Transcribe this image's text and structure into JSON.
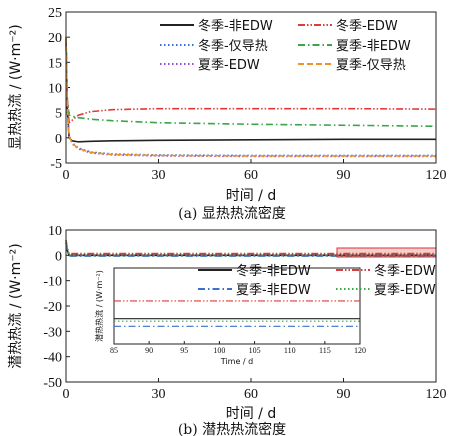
{
  "chart_data": [
    {
      "type": "line",
      "caption": "(a) 显热热流密度",
      "xlabel": "时间 / d",
      "ylabel": "显热热流 / (W·m⁻²)",
      "xlim": [
        0,
        120
      ],
      "ylim": [
        -5,
        25
      ],
      "xticks": [
        0,
        30,
        60,
        90,
        120
      ],
      "yticks": [
        -5,
        0,
        5,
        10,
        15,
        20,
        25
      ],
      "legend_position": "top",
      "series": [
        {
          "name": "冬季-非EDW",
          "color": "#222222",
          "dash": "solid",
          "x": [
            0,
            0.4,
            1,
            2,
            4,
            8,
            15,
            30,
            60,
            90,
            120
          ],
          "y": [
            20,
            6,
            0,
            -0.6,
            -0.8,
            -0.7,
            -0.6,
            -0.5,
            -0.4,
            -0.3,
            -0.3
          ]
        },
        {
          "name": "冬季-EDW",
          "color": "#e03a3a",
          "dash": "dashdotdot",
          "x": [
            0,
            0.4,
            1,
            2,
            4,
            8,
            15,
            30,
            60,
            90,
            120
          ],
          "y": [
            20,
            8,
            3,
            3.5,
            4.5,
            5.2,
            5.6,
            5.8,
            5.8,
            5.8,
            5.7
          ]
        },
        {
          "name": "冬季-仅导热",
          "color": "#3d6fd1",
          "dash": "dotted",
          "x": [
            0,
            0.4,
            1,
            2,
            4,
            8,
            15,
            30,
            60,
            90,
            120
          ],
          "y": [
            20,
            6,
            0.5,
            -1,
            -2,
            -2.8,
            -3.2,
            -3.4,
            -3.5,
            -3.5,
            -3.5
          ]
        },
        {
          "name": "夏季-非EDW",
          "color": "#3aa648",
          "dash": "dashdot",
          "x": [
            0,
            0.4,
            1,
            2,
            4,
            8,
            15,
            30,
            60,
            90,
            120
          ],
          "y": [
            20,
            8,
            4.5,
            4.3,
            4,
            3.7,
            3.4,
            3,
            2.7,
            2.5,
            2.3
          ]
        },
        {
          "name": "夏季-EDW",
          "color": "#8e4fc9",
          "dash": "dotted",
          "x": [
            0,
            0.4,
            1,
            2,
            4,
            8,
            15,
            30,
            60,
            90,
            120
          ],
          "y": [
            20,
            6,
            0.5,
            -1.2,
            -2.2,
            -3,
            -3.4,
            -3.6,
            -3.7,
            -3.7,
            -3.7
          ]
        },
        {
          "name": "夏季-仅导热",
          "color": "#f0922b",
          "dash": "dashed",
          "x": [
            0,
            0.4,
            1,
            2,
            4,
            8,
            15,
            30,
            60,
            90,
            120
          ],
          "y": [
            20,
            6,
            0.4,
            -1.1,
            -2.1,
            -2.9,
            -3.3,
            -3.5,
            -3.6,
            -3.6,
            -3.6
          ]
        }
      ]
    },
    {
      "type": "line",
      "caption": "(b) 潜热热流密度",
      "xlabel": "时间 / d",
      "ylabel": "潜热热流 / (W·m⁻²)",
      "xlim": [
        0,
        120
      ],
      "ylim": [
        -50,
        10
      ],
      "xticks": [
        0,
        30,
        60,
        90,
        120
      ],
      "yticks": [
        -50,
        -40,
        -30,
        -20,
        -10,
        0,
        10
      ],
      "legend_position": "middle-right",
      "highlight_box_x": [
        85,
        120
      ],
      "series": [
        {
          "name": "冬季-非EDW",
          "color": "#222222",
          "dash": "solid",
          "x": [
            0,
            0.4,
            1,
            3,
            10,
            60,
            120
          ],
          "y": [
            5,
            2,
            0,
            0,
            0,
            0,
            0
          ]
        },
        {
          "name": "冬季-EDW",
          "color": "#e03a3a",
          "dash": "dashdotdot",
          "x": [
            0,
            0.4,
            1,
            3,
            10,
            60,
            120
          ],
          "y": [
            6,
            3,
            0.7,
            0.7,
            0.7,
            0.7,
            0.7
          ]
        },
        {
          "name": "夏季-非EDW",
          "color": "#3d6fd1",
          "dash": "dashdot",
          "x": [
            0,
            0.4,
            1,
            3,
            10,
            60,
            120
          ],
          "y": [
            5,
            2,
            -0.3,
            -0.3,
            -0.3,
            -0.3,
            -0.3
          ]
        },
        {
          "name": "夏季-EDW",
          "color": "#3aa648",
          "dash": "dotted",
          "x": [
            0,
            0.4,
            1,
            3,
            10,
            60,
            120
          ],
          "y": [
            6,
            2.5,
            -0.1,
            -0.1,
            -0.1,
            -0.1,
            -0.1
          ]
        }
      ],
      "inset": {
        "xlabel": "Time / d",
        "ylabel": "潜热热流 / (W·m⁻²)",
        "xlim": [
          85,
          120
        ],
        "xticks": [
          85,
          90,
          95,
          100,
          105,
          110,
          115,
          120
        ],
        "ylim": [
          -1,
          2
        ]
      }
    }
  ]
}
